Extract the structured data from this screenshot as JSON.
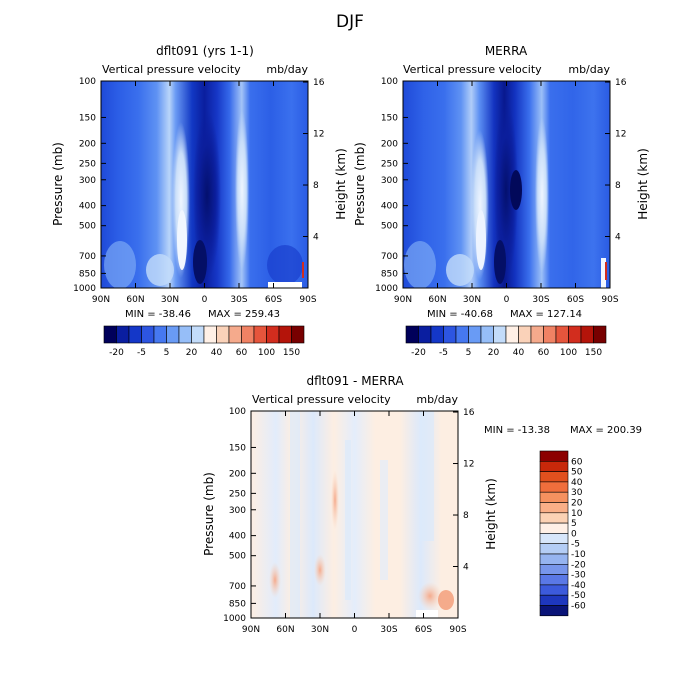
{
  "page_title": "DJF",
  "chart_data": [
    {
      "type": "heatmap",
      "title": "dflt091 (yrs 1-1)",
      "subtitle_left": "Vertical pressure velocity",
      "subtitle_right": "mb/day",
      "ylabel": "Pressure (mb)",
      "ylabel_right": "Height (km)",
      "x_ticks": [
        "90N",
        "60N",
        "30N",
        "0",
        "30S",
        "60S",
        "90S"
      ],
      "y_ticks": [
        "100",
        "150",
        "200",
        "250",
        "300",
        "400",
        "500",
        "700",
        "850",
        "1000"
      ],
      "y_right_ticks": [
        "16",
        "12",
        "8",
        "4"
      ],
      "min_label": "MIN = -38.46",
      "max_label": "MAX = 259.43",
      "colorbar_labels": [
        "-20",
        "-5",
        "5",
        "20",
        "40",
        "60",
        "100",
        "150"
      ],
      "colorbar_colors": [
        "#00005a",
        "#0a1ea0",
        "#1437c8",
        "#2d55e1",
        "#4678f0",
        "#699bf5",
        "#96bef8",
        "#c3dcfa",
        "#fff0e6",
        "#fad2b9",
        "#f5aa8c",
        "#f08264",
        "#e6553c",
        "#d22d1e",
        "#b4140a",
        "#780000"
      ]
    },
    {
      "type": "heatmap",
      "title": "MERRA",
      "subtitle_left": "Vertical pressure velocity",
      "subtitle_right": "mb/day",
      "ylabel": "Pressure (mb)",
      "ylabel_right": "Height (km)",
      "x_ticks": [
        "90N",
        "60N",
        "30N",
        "0",
        "30S",
        "60S",
        "90S"
      ],
      "y_ticks": [
        "100",
        "150",
        "200",
        "250",
        "300",
        "400",
        "500",
        "700",
        "850",
        "1000"
      ],
      "y_right_ticks": [
        "16",
        "12",
        "8",
        "4"
      ],
      "min_label": "MIN = -40.68",
      "max_label": "MAX = 127.14",
      "colorbar_labels": [
        "-20",
        "-5",
        "5",
        "20",
        "40",
        "60",
        "100",
        "150"
      ],
      "colorbar_colors": [
        "#00005a",
        "#0a1ea0",
        "#1437c8",
        "#2d55e1",
        "#4678f0",
        "#699bf5",
        "#96bef8",
        "#c3dcfa",
        "#fff0e6",
        "#fad2b9",
        "#f5aa8c",
        "#f08264",
        "#e6553c",
        "#d22d1e",
        "#b4140a",
        "#780000"
      ]
    },
    {
      "type": "heatmap",
      "title": "dflt091 - MERRA",
      "subtitle_left": "Vertical pressure velocity",
      "subtitle_right": "mb/day",
      "ylabel": "Pressure (mb)",
      "ylabel_right": "Height (km)",
      "x_ticks": [
        "90N",
        "60N",
        "30N",
        "0",
        "30S",
        "60S",
        "90S"
      ],
      "y_ticks": [
        "100",
        "150",
        "200",
        "250",
        "300",
        "400",
        "500",
        "700",
        "850",
        "1000"
      ],
      "y_right_ticks": [
        "16",
        "12",
        "8",
        "4"
      ],
      "min_label": "MIN = -13.38",
      "max_label": "MAX = 200.39",
      "colorbar_labels": [
        "60",
        "50",
        "40",
        "30",
        "20",
        "10",
        "5",
        "0",
        "-5",
        "-10",
        "-20",
        "-30",
        "-40",
        "-50",
        "-60"
      ],
      "colorbar_colors": [
        "#8c0000",
        "#c8280a",
        "#e1501e",
        "#f06e3c",
        "#f5915f",
        "#faaf87",
        "#fcd2b4",
        "#fff0e6",
        "#d7e6fa",
        "#b4cdf5",
        "#96b4f0",
        "#7896eb",
        "#5a78e6",
        "#3c5adc",
        "#1e37be",
        "#0a1478"
      ]
    }
  ]
}
